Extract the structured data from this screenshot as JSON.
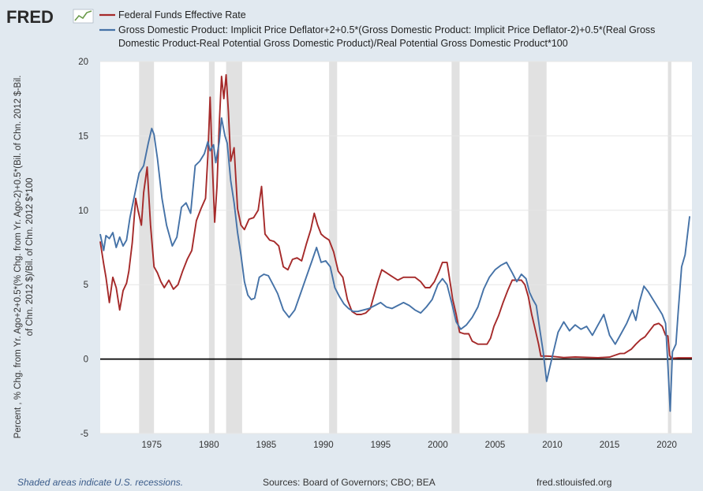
{
  "logo": {
    "text": "FRED",
    "icon": "chart-line-icon"
  },
  "legend": [
    {
      "label": "Federal Funds Effective Rate",
      "color": "#a52a2a"
    },
    {
      "label_lines": [
        "Gross Domestic Product: Implicit Price Deflator+2+0.5*(Gross Domestic Product: Implicit Price Deflator-2)+0.5*(Real Gross",
        "Domestic Product-Real Potential Gross Domestic Product)/Real Potential Gross Domestic Product*100"
      ],
      "color": "#4572a7"
    }
  ],
  "footer": {
    "note": "Shaded areas indicate U.S. recessions.",
    "sources": "Sources: Board of Governors; CBO; BEA",
    "site": "fred.stlouisfed.org"
  },
  "chart_data": {
    "type": "line",
    "ylabel_lines": [
      "Percent , % Chg. from Yr. Ago+2+0.5*(% Chg. from Yr. Ago-2)+0.5*(Bil. of Chn. 2012 $-Bil.",
      "of Chn. 2012 $)/Bil. of Chn. 2012 $*100"
    ],
    "xlim": [
      1970.5,
      2022.2
    ],
    "ylim": [
      -5,
      20
    ],
    "x_ticks": [
      1975,
      1980,
      1985,
      1990,
      1995,
      2000,
      2005,
      2010,
      2015,
      2020
    ],
    "y_ticks": [
      -5,
      0,
      5,
      10,
      15,
      20
    ],
    "grid": "horizontal",
    "zero_line": true,
    "recessions": [
      [
        1973.9,
        1975.2
      ],
      [
        1980.0,
        1980.5
      ],
      [
        1981.5,
        1982.9
      ],
      [
        1990.5,
        1991.2
      ],
      [
        2001.2,
        2001.9
      ],
      [
        2007.9,
        2009.5
      ],
      [
        2020.1,
        2020.4
      ]
    ],
    "series": [
      {
        "name": "Federal Funds Effective Rate",
        "color": "#a52a2a",
        "x": [
          1970.5,
          1970.8,
          1971.0,
          1971.3,
          1971.6,
          1971.9,
          1972.2,
          1972.5,
          1972.8,
          1973.0,
          1973.3,
          1973.6,
          1973.8,
          1974.1,
          1974.3,
          1974.6,
          1974.9,
          1975.2,
          1975.5,
          1975.8,
          1976.1,
          1976.5,
          1976.9,
          1977.3,
          1977.7,
          1978.1,
          1978.5,
          1978.9,
          1979.3,
          1979.7,
          1979.9,
          1980.1,
          1980.3,
          1980.5,
          1980.7,
          1980.9,
          1981.1,
          1981.3,
          1981.5,
          1981.7,
          1981.9,
          1982.2,
          1982.5,
          1982.8,
          1983.1,
          1983.5,
          1983.9,
          1984.3,
          1984.6,
          1984.9,
          1985.3,
          1985.7,
          1986.1,
          1986.5,
          1986.9,
          1987.3,
          1987.7,
          1988.1,
          1988.5,
          1988.9,
          1989.2,
          1989.5,
          1989.8,
          1990.1,
          1990.5,
          1990.9,
          1991.3,
          1991.7,
          1992.1,
          1992.5,
          1992.9,
          1993.3,
          1993.7,
          1994.1,
          1994.5,
          1994.8,
          1995.1,
          1995.5,
          1995.9,
          1996.5,
          1997.0,
          1997.5,
          1998.0,
          1998.5,
          1998.9,
          1999.3,
          1999.7,
          2000.1,
          2000.4,
          2000.8,
          2001.0,
          2001.3,
          2001.6,
          2001.9,
          2002.3,
          2002.7,
          2003.0,
          2003.5,
          2003.9,
          2004.3,
          2004.6,
          2004.9,
          2005.3,
          2005.7,
          2006.1,
          2006.5,
          2006.9,
          2007.3,
          2007.6,
          2007.9,
          2008.2,
          2008.5,
          2008.8,
          2009.0,
          2009.5,
          2010.0,
          2011.0,
          2012.0,
          2013.0,
          2014.0,
          2015.0,
          2015.9,
          2016.3,
          2016.9,
          2017.3,
          2017.7,
          2018.1,
          2018.5,
          2018.9,
          2019.3,
          2019.6,
          2019.9,
          2020.1,
          2020.25,
          2020.4,
          2021.0,
          2021.5,
          2022.2
        ],
        "values": [
          7.9,
          6.4,
          5.5,
          3.8,
          5.5,
          4.8,
          3.3,
          4.6,
          5.1,
          5.9,
          7.8,
          10.8,
          10.0,
          9.0,
          11.2,
          12.9,
          9.0,
          6.2,
          5.8,
          5.2,
          4.8,
          5.3,
          4.7,
          5.0,
          5.9,
          6.7,
          7.3,
          9.3,
          10.1,
          10.8,
          13.6,
          17.6,
          13.0,
          9.2,
          11.6,
          15.8,
          19.0,
          17.5,
          19.1,
          16.6,
          13.3,
          14.2,
          10.1,
          9.0,
          8.7,
          9.4,
          9.5,
          10.0,
          11.6,
          8.4,
          8.0,
          7.9,
          7.6,
          6.2,
          6.0,
          6.7,
          6.8,
          6.6,
          7.7,
          8.7,
          9.8,
          9.0,
          8.4,
          8.2,
          8.0,
          7.2,
          5.9,
          5.5,
          4.0,
          3.2,
          3.0,
          3.0,
          3.1,
          3.4,
          4.5,
          5.3,
          6.0,
          5.8,
          5.6,
          5.3,
          5.5,
          5.5,
          5.5,
          5.2,
          4.8,
          4.8,
          5.2,
          5.9,
          6.5,
          6.5,
          5.5,
          4.0,
          3.0,
          1.8,
          1.7,
          1.7,
          1.2,
          1.0,
          1.0,
          1.0,
          1.4,
          2.2,
          2.9,
          3.8,
          4.6,
          5.3,
          5.3,
          5.3,
          5.0,
          4.2,
          3.0,
          2.0,
          1.0,
          0.2,
          0.2,
          0.18,
          0.1,
          0.14,
          0.11,
          0.09,
          0.13,
          0.37,
          0.38,
          0.66,
          1.0,
          1.3,
          1.5,
          1.9,
          2.3,
          2.4,
          2.2,
          1.6,
          1.55,
          0.25,
          0.05,
          0.08,
          0.08,
          0.08
        ]
      },
      {
        "name": "Gross Domestic Product: Implicit Price Deflator+2+0.5*(Gross Domestic Product: Implicit Price Deflator-2)+0.5*(Real Gross Domestic Product-Real Potential Gross Domestic Product)/Real Potential Gross Domestic Product*100",
        "color": "#4572a7",
        "x": [
          1970.5,
          1970.8,
          1971.0,
          1971.3,
          1971.6,
          1971.9,
          1972.2,
          1972.5,
          1972.8,
          1973.1,
          1973.5,
          1973.9,
          1974.3,
          1974.7,
          1975.0,
          1975.2,
          1975.5,
          1975.9,
          1976.3,
          1976.8,
          1977.2,
          1977.6,
          1978.0,
          1978.4,
          1978.8,
          1979.2,
          1979.6,
          1979.9,
          1980.1,
          1980.4,
          1980.6,
          1980.9,
          1981.1,
          1981.4,
          1981.6,
          1981.9,
          1982.2,
          1982.5,
          1982.8,
          1983.1,
          1983.4,
          1983.7,
          1984.0,
          1984.4,
          1984.8,
          1985.2,
          1985.6,
          1986.0,
          1986.5,
          1987.0,
          1987.5,
          1988.0,
          1988.5,
          1989.0,
          1989.4,
          1989.8,
          1990.2,
          1990.6,
          1991.0,
          1991.4,
          1991.8,
          1992.2,
          1992.6,
          1993.0,
          1993.5,
          1994.0,
          1994.5,
          1995.0,
          1995.5,
          1996.0,
          1996.5,
          1997.0,
          1997.5,
          1998.0,
          1998.5,
          1999.0,
          1999.5,
          2000.0,
          2000.4,
          2000.8,
          2001.2,
          2001.6,
          2002.0,
          2002.5,
          2003.0,
          2003.5,
          2004.0,
          2004.5,
          2005.0,
          2005.5,
          2006.0,
          2006.5,
          2006.9,
          2007.3,
          2007.7,
          2008.0,
          2008.3,
          2008.6,
          2008.9,
          2009.2,
          2009.5,
          2009.8,
          2010.1,
          2010.5,
          2011.0,
          2011.5,
          2012.0,
          2012.5,
          2013.0,
          2013.5,
          2014.0,
          2014.5,
          2015.0,
          2015.5,
          2016.0,
          2016.5,
          2017.0,
          2017.3,
          2017.6,
          2018.0,
          2018.4,
          2018.8,
          2019.2,
          2019.6,
          2019.9,
          2020.1,
          2020.3,
          2020.5,
          2020.8,
          2021.0,
          2021.3,
          2021.6,
          2022.0
        ],
        "values": [
          8.4,
          7.3,
          8.3,
          8.1,
          8.5,
          7.5,
          8.2,
          7.6,
          8.0,
          9.5,
          11.0,
          12.5,
          13.0,
          14.5,
          15.5,
          15.1,
          13.5,
          10.8,
          9.0,
          7.6,
          8.2,
          10.2,
          10.5,
          9.8,
          13.0,
          13.3,
          13.8,
          14.6,
          14.0,
          14.4,
          13.2,
          14.6,
          16.2,
          15.0,
          14.5,
          12.0,
          10.5,
          8.5,
          7.0,
          5.2,
          4.3,
          4.0,
          4.1,
          5.5,
          5.7,
          5.6,
          5.0,
          4.4,
          3.3,
          2.8,
          3.3,
          4.4,
          5.5,
          6.6,
          7.5,
          6.5,
          6.6,
          6.2,
          4.8,
          4.2,
          3.7,
          3.4,
          3.2,
          3.2,
          3.3,
          3.4,
          3.6,
          3.8,
          3.5,
          3.4,
          3.6,
          3.8,
          3.6,
          3.3,
          3.1,
          3.5,
          4.0,
          5.0,
          5.4,
          5.0,
          3.8,
          2.5,
          2.0,
          2.3,
          2.8,
          3.5,
          4.7,
          5.5,
          6.0,
          6.3,
          6.5,
          5.8,
          5.2,
          5.7,
          5.4,
          4.5,
          4.0,
          3.6,
          2.0,
          0.5,
          -1.5,
          -0.5,
          0.5,
          1.8,
          2.5,
          1.9,
          2.3,
          2.0,
          2.2,
          1.6,
          2.3,
          3.0,
          1.6,
          1.0,
          1.7,
          2.4,
          3.3,
          2.6,
          3.8,
          4.9,
          4.5,
          4.0,
          3.5,
          3.0,
          2.4,
          -0.4,
          -3.5,
          0.5,
          1.0,
          3.2,
          6.2,
          7.0,
          9.6
        ]
      }
    ]
  }
}
